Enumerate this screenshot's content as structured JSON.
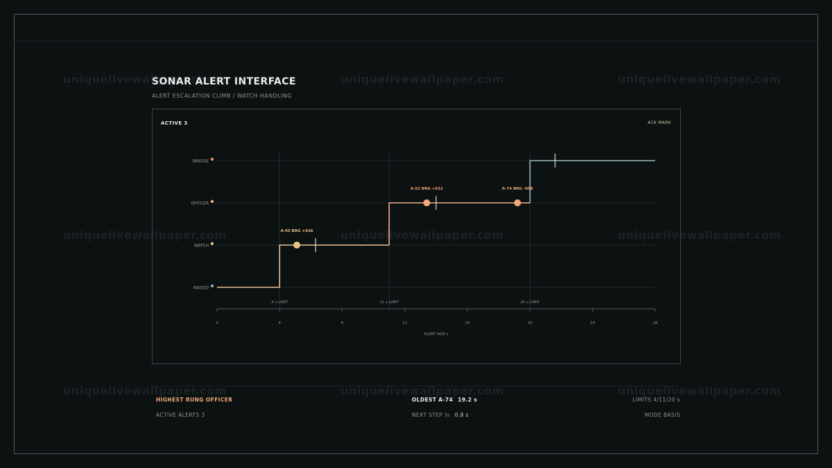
{
  "watermark": "uniquelivewallpaper.com",
  "header": {
    "title": "SONAR ALERT INTERFACE",
    "subtitle": "ALERT ESCALATION CLIMB / WATCH HANDLING"
  },
  "panel": {
    "active_label": "ACTIVE 3",
    "ack_label": "ACK MARK"
  },
  "chart_data": {
    "type": "line",
    "xlabel": "ALERT AGE s",
    "xlim": [
      0,
      28
    ],
    "x_ticks": [
      0,
      4,
      8,
      12,
      16,
      20,
      24,
      28
    ],
    "rungs": [
      "RAISED",
      "WATCH",
      "OFFICER",
      "BRIDGE"
    ],
    "rung_colors": [
      "#9aa9ad",
      "#e7c38a",
      "#f0a77a",
      "#f08a6e"
    ],
    "limits": [
      {
        "x": 4,
        "label": "4 s LIMIT"
      },
      {
        "x": 11,
        "label": "11 s LIMIT"
      },
      {
        "x": 20,
        "label": "20 s LIMIT"
      }
    ],
    "escalation_path": [
      {
        "x": 0,
        "rung": 0
      },
      {
        "x": 4,
        "rung": 0
      },
      {
        "x": 4,
        "rung": 1
      },
      {
        "x": 11,
        "rung": 1
      },
      {
        "x": 11,
        "rung": 2
      },
      {
        "x": 20,
        "rung": 2
      },
      {
        "x": 20,
        "rung": 3
      },
      {
        "x": 28,
        "rung": 3
      }
    ],
    "path_colors": {
      "below_limit_3": "#e8c79a",
      "officer": "#f0b48c",
      "bridge": "#9fb7bc"
    },
    "alerts": [
      {
        "id": "A-05",
        "label": "A-05  BRG +026",
        "x": 5.1,
        "rung": 1,
        "ack_x": 6.3,
        "color": "#e7c38a"
      },
      {
        "id": "A-52",
        "label": "A-52  BRG +012",
        "x": 13.4,
        "rung": 2,
        "ack_x": 14.0,
        "color": "#f0a77a"
      },
      {
        "id": "A-74",
        "label": "A-74  BRG -008",
        "x": 19.2,
        "rung": 2,
        "ack_x": null,
        "color": "#f0a77a"
      }
    ],
    "ack_marks": [
      {
        "x": 6.3,
        "rung": 1
      },
      {
        "x": 14.0,
        "rung": 2
      },
      {
        "x": 21.6,
        "rung": 3
      }
    ]
  },
  "footer": {
    "highest_rung": "HIGHEST RUNG OFFICER",
    "active_alerts": "ACTIVE ALERTS 3",
    "oldest_label": "OLDEST A-74",
    "oldest_value": "19.2 s",
    "next_step_label": "NEXT STEP in",
    "next_step_value": "0.8 s",
    "limits": "LIMITS 4/11/20 s",
    "mode": "MODE BASIS"
  }
}
